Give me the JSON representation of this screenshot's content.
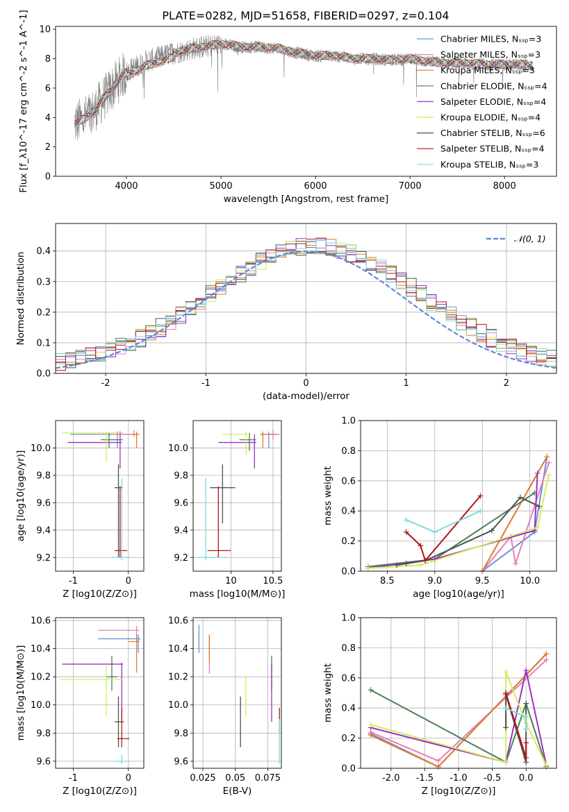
{
  "title": "PLATE=0282, MJD=51658, FIBERID=0297, z=0.104",
  "chart_data": [
    {
      "id": "spectrum",
      "type": "line",
      "xlabel": "wavelength [Angstrom, rest frame]",
      "ylabel": "Flux [f_λ10^-17 erg cm^-2 s^-1 A^-1]",
      "xlim": [
        3250,
        8550
      ],
      "ylim": [
        0,
        10.2
      ],
      "xticks": [
        4000,
        5000,
        6000,
        7000,
        8000
      ],
      "yticks": [
        0,
        2,
        4,
        6,
        8,
        10
      ],
      "grid": false,
      "legend_position": "right",
      "data_series": {
        "name": "data",
        "color": "#808080",
        "x_range": [
          3450,
          8300
        ]
      },
      "model_series": [
        {
          "name": "Chabrier MILES, N_SSP=3",
          "color": "#6a8fd8"
        },
        {
          "name": "Salpeter MILES, N_SSP=3",
          "color": "#e87fb5"
        },
        {
          "name": "Kroupa MILES, N_SSP=3",
          "color": "#dd7a2b"
        },
        {
          "name": "Chabrier ELODIE, N_SSP=4",
          "color": "#4a7f55"
        },
        {
          "name": "Salpeter ELODIE, N_SSP=4",
          "color": "#9b30c0"
        },
        {
          "name": "Kroupa ELODIE, N_SSP=4",
          "color": "#d4ec5a"
        },
        {
          "name": "Chabrier STELIB, N_SSP=6",
          "color": "#505050"
        },
        {
          "name": "Salpeter STELIB, N_SSP=4",
          "color": "#b01515"
        },
        {
          "name": "Kroupa STELIB, N_SSP=3",
          "color": "#7fd9dd"
        }
      ],
      "continuum": {
        "x": [
          3450,
          3550,
          3650,
          3750,
          3850,
          3950,
          4050,
          4200,
          4350,
          4500,
          4700,
          4900,
          5000,
          5200,
          5400,
          5600,
          5800,
          6000,
          6200,
          6400,
          6600,
          6800,
          7000,
          7200,
          7400,
          7600,
          7800,
          8000,
          8200,
          8300
        ],
        "y": [
          3.6,
          3.9,
          4.4,
          5.2,
          6.0,
          6.8,
          7.3,
          7.8,
          8.1,
          8.4,
          8.7,
          8.9,
          9.0,
          8.8,
          8.8,
          8.7,
          8.4,
          8.2,
          8.2,
          8.0,
          8.0,
          7.9,
          8.0,
          7.8,
          7.7,
          7.7,
          7.6,
          7.6,
          7.6,
          7.5
        ]
      }
    },
    {
      "id": "residuals",
      "type": "bar",
      "xlabel": "(data-model)/error",
      "ylabel": "Normed distribution",
      "xlim": [
        -2.5,
        2.5
      ],
      "ylim": [
        0,
        0.49
      ],
      "xticks": [
        -2,
        -1,
        0,
        1,
        2
      ],
      "yticks": [
        0.0,
        0.1,
        0.2,
        0.3,
        0.4
      ],
      "grid": true,
      "legend_position": "top-right",
      "reference_curve": {
        "name": "𝒩(0, 1)",
        "color": "#5b88d6",
        "style": "dashed"
      },
      "bin_width": 0.1,
      "bin_start": -2.5
    },
    {
      "id": "age_vs_Z",
      "type": "scatter",
      "xlabel": "Z [log10(Z/Z⊙)]",
      "ylabel": "age  [log10(age/yr)]",
      "xlim": [
        -1.32,
        0.28
      ],
      "ylim": [
        9.1,
        10.2
      ],
      "xticks": [
        -1,
        0
      ],
      "yticks": [
        9.2,
        9.4,
        9.6,
        9.8,
        10.0
      ],
      "grid": true
    },
    {
      "id": "age_vs_mass",
      "type": "scatter",
      "xlabel": "mass [log10(M/M⊙)]",
      "ylabel": "",
      "xlim": [
        9.55,
        10.6
      ],
      "ylim": [
        9.1,
        10.2
      ],
      "xticks": [
        10.0,
        10.5
      ],
      "yticks": [
        9.2,
        9.4,
        9.6,
        9.8,
        10.0
      ],
      "grid": true
    },
    {
      "id": "weight_vs_age",
      "type": "line",
      "xlabel": "age  [log10(age/yr)]",
      "ylabel": "mass weight",
      "xlim": [
        8.22,
        10.28
      ],
      "ylim": [
        0,
        1
      ],
      "xticks": [
        8.5,
        9.0,
        9.5,
        10.0
      ],
      "yticks": [
        0.0,
        0.2,
        0.4,
        0.6,
        0.8,
        1.0
      ],
      "grid": true,
      "series": [
        {
          "name": "Chabrier MILES",
          "color": "#6a8fd8",
          "x": [
            9.5,
            10.05,
            10.18
          ],
          "y": [
            0.0,
            0.26,
            0.76
          ]
        },
        {
          "name": "Salpeter MILES",
          "color": "#e87fb5",
          "x": [
            9.5,
            9.8,
            9.85,
            10.2
          ],
          "y": [
            0.0,
            0.23,
            0.05,
            0.72
          ]
        },
        {
          "name": "Kroupa MILES",
          "color": "#dd7a2b",
          "x": [
            9.5,
            10.18
          ],
          "y": [
            0.0,
            0.76
          ]
        },
        {
          "name": "Chabrier ELODIE",
          "color": "#4a7f55",
          "x": [
            8.3,
            9.0,
            10.05
          ],
          "y": [
            0.03,
            0.08,
            0.52
          ]
        },
        {
          "name": "Salpeter ELODIE",
          "color": "#9b30c0",
          "x": [
            8.3,
            9.0,
            10.05,
            10.08
          ],
          "y": [
            0.02,
            0.08,
            0.27,
            0.65
          ]
        },
        {
          "name": "Kroupa ELODIE",
          "color": "#d4ec5a",
          "x": [
            8.3,
            8.85,
            10.08,
            10.2
          ],
          "y": [
            0.02,
            0.04,
            0.29,
            0.64
          ]
        },
        {
          "name": "Chabrier STELIB",
          "color": "#505050",
          "x": [
            8.6,
            8.7,
            8.9,
            9.6,
            9.9,
            10.1
          ],
          "y": [
            0.04,
            0.05,
            0.07,
            0.27,
            0.49,
            0.43
          ]
        },
        {
          "name": "Salpeter STELIB",
          "color": "#b01515",
          "x": [
            8.7,
            8.85,
            8.9,
            9.48
          ],
          "y": [
            0.26,
            0.17,
            0.07,
            0.5
          ]
        },
        {
          "name": "Kroupa STELIB",
          "color": "#7fd9dd",
          "x": [
            8.7,
            9.0,
            9.48
          ],
          "y": [
            0.34,
            0.26,
            0.4
          ]
        }
      ]
    },
    {
      "id": "mass_vs_Z",
      "type": "scatter",
      "xlabel": "Z [log10(Z/Z⊙)]",
      "ylabel": "mass [log10(M/M⊙)]",
      "xlim": [
        -1.32,
        0.28
      ],
      "ylim": [
        9.55,
        10.62
      ],
      "xticks": [
        -1,
        0
      ],
      "yticks": [
        9.6,
        9.8,
        10.0,
        10.2,
        10.4,
        10.6
      ],
      "grid": true
    },
    {
      "id": "mass_vs_ebv",
      "type": "scatter",
      "xlabel": "E(B-V)",
      "ylabel": "",
      "xlim": [
        0.0175,
        0.0855
      ],
      "ylim": [
        9.55,
        10.62
      ],
      "xticks": [
        0.025,
        0.05,
        0.075
      ],
      "yticks": [
        9.6,
        9.8,
        10.0,
        10.2,
        10.4,
        10.6
      ],
      "grid": true
    },
    {
      "id": "weight_vs_Z",
      "type": "line",
      "xlabel": "Z [log10(Z/Z⊙)]",
      "ylabel": "mass weight",
      "xlim": [
        -2.45,
        0.45
      ],
      "ylim": [
        0,
        1
      ],
      "xticks": [
        -2.0,
        -1.5,
        -1.0,
        -0.5,
        0.0
      ],
      "yticks": [
        0.0,
        0.2,
        0.4,
        0.6,
        0.8,
        1.0
      ],
      "grid": true,
      "series": [
        {
          "name": "Chabrier MILES",
          "color": "#6a8fd8",
          "x": [
            -2.3,
            -1.3,
            0.3
          ],
          "y": [
            0.23,
            0.01,
            0.76
          ]
        },
        {
          "name": "Salpeter MILES",
          "color": "#e87fb5",
          "x": [
            -2.3,
            -1.3,
            0.3
          ],
          "y": [
            0.24,
            0.05,
            0.72
          ]
        },
        {
          "name": "Kroupa MILES",
          "color": "#dd7a2b",
          "x": [
            -2.3,
            -1.3,
            0.3
          ],
          "y": [
            0.22,
            0.01,
            0.76
          ]
        },
        {
          "name": "Chabrier ELODIE",
          "color": "#4a7f55",
          "x": [
            -2.3,
            -0.3,
            0.0,
            0.3
          ],
          "y": [
            0.52,
            0.04,
            0.43,
            0.01
          ]
        },
        {
          "name": "Salpeter ELODIE",
          "color": "#9b30c0",
          "x": [
            -2.3,
            -0.3,
            0.0,
            0.3
          ],
          "y": [
            0.27,
            0.04,
            0.65,
            0.02
          ]
        },
        {
          "name": "Kroupa ELODIE",
          "color": "#d4ec5a",
          "x": [
            -2.3,
            -0.3,
            -0.3,
            0.0,
            0.3
          ],
          "y": [
            0.29,
            0.04,
            0.64,
            0.3,
            0.02
          ]
        },
        {
          "name": "Chabrier STELIB",
          "color": "#505050",
          "x": [
            -0.3,
            -0.3,
            0.0,
            0.0
          ],
          "y": [
            0.27,
            0.49,
            0.04,
            0.43
          ]
        },
        {
          "name": "Salpeter STELIB",
          "color": "#b01515",
          "x": [
            -0.3,
            0.0,
            0.0
          ],
          "y": [
            0.5,
            0.07,
            0.17
          ]
        },
        {
          "name": "Kroupa STELIB",
          "color": "#7fd9dd",
          "x": [
            -0.3,
            0.0,
            0.0
          ],
          "y": [
            0.4,
            0.34,
            0.26
          ]
        }
      ]
    }
  ]
}
